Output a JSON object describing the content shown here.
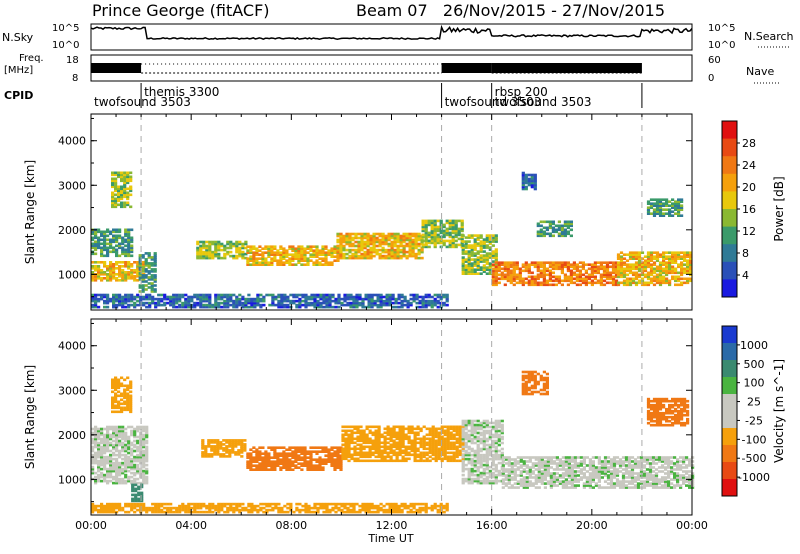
{
  "header": {
    "station": "Prince George (fitACF)",
    "beam_and_dates": "Beam 07   26/Nov/2015 - 27/Nov/2015"
  },
  "strip_labels": {
    "nsky": "N.Sky",
    "nsky_top": "10^5",
    "nsky_bottom": "10^0",
    "nsearch": "N.Search",
    "nsearch_top": "10^5",
    "nsearch_bottom": "10^0",
    "freq": "Freq.",
    "freq_unit": "[MHz]",
    "freq_top": "18",
    "freq_bottom": "8",
    "nave": "Nave",
    "nave_top": "60",
    "nave_bottom": "0",
    "cpid": "CPID"
  },
  "cpid_segments": [
    {
      "label": "twofsound 3503",
      "start_h": 0.0,
      "end_h": 2.0,
      "row": "lower"
    },
    {
      "label": "themis 3300",
      "start_h": 2.0,
      "end_h": 14.0,
      "row": "upper"
    },
    {
      "label": "twofsound 3503",
      "start_h": 14.0,
      "end_h": 16.0,
      "row": "lower"
    },
    {
      "label": "rbsp 200",
      "start_h": 16.0,
      "end_h": 22.0,
      "row": "upper"
    },
    {
      "label": "twofsound 3503",
      "start_h": 16.0,
      "end_h": 22.0,
      "row": "lower"
    }
  ],
  "chart_data": [
    {
      "type": "heatmap",
      "name": "power",
      "ylabel": "Slant Range [km]",
      "x_range_h": [
        0,
        24
      ],
      "ylim": [
        200,
        4600
      ],
      "y_ticks": [
        1000,
        2000,
        3000,
        4000
      ],
      "x_ticks": [
        "00:00",
        "04:00",
        "08:00",
        "12:00",
        "16:00",
        "20:00",
        "00:00"
      ],
      "colorbar": {
        "label": "Power [dB]",
        "ticks": [
          "4",
          "8",
          "12",
          "16",
          "20",
          "24",
          "28"
        ],
        "colors": [
          "#1a1ae0",
          "#2a50b8",
          "#2f7a96",
          "#3a9a6a",
          "#8ab832",
          "#e8c80c",
          "#f5a00c",
          "#f07814",
          "#e84a14",
          "#e01010"
        ]
      },
      "bands": [
        {
          "t0": 0.0,
          "t1": 2.1,
          "r0": 850,
          "r1": 1300,
          "value": 20
        },
        {
          "t0": 0.0,
          "t1": 1.6,
          "r0": 1400,
          "r1": 2000,
          "value": 12
        },
        {
          "t0": 0.8,
          "t1": 1.6,
          "r0": 2500,
          "r1": 3300,
          "value": 16
        },
        {
          "t0": 1.9,
          "t1": 2.6,
          "r0": 600,
          "r1": 1500,
          "value": 12
        },
        {
          "t0": 4.2,
          "t1": 6.2,
          "r0": 1350,
          "r1": 1750,
          "value": 16
        },
        {
          "t0": 6.2,
          "t1": 9.8,
          "r0": 1200,
          "r1": 1650,
          "value": 20
        },
        {
          "t0": 9.8,
          "t1": 13.2,
          "r0": 1350,
          "r1": 1900,
          "value": 20
        },
        {
          "t0": 13.2,
          "t1": 14.8,
          "r0": 1600,
          "r1": 2200,
          "value": 16
        },
        {
          "t0": 14.8,
          "t1": 16.2,
          "r0": 1000,
          "r1": 1900,
          "value": 16
        },
        {
          "t0": 16.0,
          "t1": 21.0,
          "r0": 750,
          "r1": 1250,
          "value": 24
        },
        {
          "t0": 21.0,
          "t1": 24.0,
          "r0": 750,
          "r1": 1500,
          "value": 20
        },
        {
          "t0": 0.0,
          "t1": 14.2,
          "r0": 250,
          "r1": 550,
          "value": 8
        },
        {
          "t0": 17.8,
          "t1": 19.2,
          "r0": 1850,
          "r1": 2200,
          "value": 12
        },
        {
          "t0": 22.2,
          "t1": 23.6,
          "r0": 2300,
          "r1": 2700,
          "value": 12
        },
        {
          "t0": 17.2,
          "t1": 17.8,
          "r0": 2900,
          "r1": 3300,
          "value": 8
        }
      ]
    },
    {
      "type": "heatmap",
      "name": "velocity",
      "ylabel": "Slant Range [km]",
      "xlabel": "Time UT",
      "x_range_h": [
        0,
        24
      ],
      "ylim": [
        200,
        4600
      ],
      "y_ticks": [
        1000,
        2000,
        3000,
        4000
      ],
      "x_ticks": [
        "00:00",
        "04:00",
        "08:00",
        "12:00",
        "16:00",
        "20:00",
        "00:00"
      ],
      "colorbar": {
        "label": "Velocity [m s^-1]",
        "ticks": [
          "1000",
          "500",
          "100",
          "25",
          "-25",
          "-100",
          "-500",
          "-1000"
        ],
        "colors": [
          "#1a3ad0",
          "#2a6aa8",
          "#3a8a70",
          "#4ab440",
          "#c8c8c0",
          "#c8c8c0",
          "#f5a00c",
          "#f07814",
          "#e84a14",
          "#e01010"
        ]
      },
      "bands": [
        {
          "t0": 0.0,
          "t1": 2.2,
          "r0": 900,
          "r1": 2200,
          "value": 0
        },
        {
          "t0": 1.6,
          "t1": 2.0,
          "r0": 500,
          "r1": 900,
          "value": 150
        },
        {
          "t0": 0.8,
          "t1": 1.6,
          "r0": 2500,
          "r1": 3300,
          "value": -200
        },
        {
          "t0": 4.4,
          "t1": 6.2,
          "r0": 1500,
          "r1": 1900,
          "value": -200
        },
        {
          "t0": 6.2,
          "t1": 10.0,
          "r0": 1200,
          "r1": 1700,
          "value": -400
        },
        {
          "t0": 10.0,
          "t1": 14.8,
          "r0": 1400,
          "r1": 2200,
          "value": -250
        },
        {
          "t0": 14.8,
          "t1": 16.4,
          "r0": 900,
          "r1": 2300,
          "value": 0
        },
        {
          "t0": 16.4,
          "t1": 24.0,
          "r0": 800,
          "r1": 1500,
          "value": 0
        },
        {
          "t0": 0.0,
          "t1": 14.2,
          "r0": 250,
          "r1": 450,
          "value": -100
        },
        {
          "t0": 17.2,
          "t1": 18.2,
          "r0": 2900,
          "r1": 3400,
          "value": -600
        },
        {
          "t0": 22.2,
          "t1": 23.8,
          "r0": 2200,
          "r1": 2800,
          "value": -400
        }
      ]
    }
  ]
}
